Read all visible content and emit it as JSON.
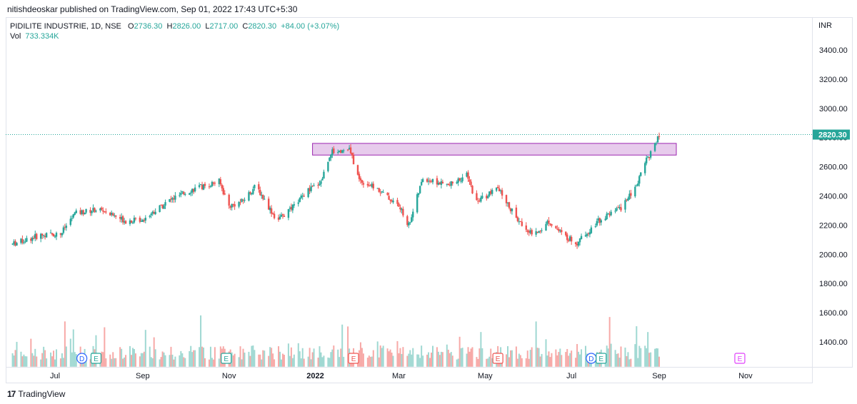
{
  "header": {
    "published": "nitishdeoskar published on TradingView.com, Sep 01, 2022 17:43 UTC+5:30"
  },
  "legend": {
    "symbol": "PIDILITE INDUSTRIE, 1D, NSE",
    "o_label": "O",
    "o_value": "2736.30",
    "h_label": "H",
    "h_value": "2826.00",
    "l_label": "L",
    "l_value": "2717.00",
    "c_label": "C",
    "c_value": "2820.30",
    "change": "+84.00 (+3.07%)",
    "vol_label": "Vol",
    "vol_value": "733.334K"
  },
  "currency": "INR",
  "footer": {
    "brand": "TradingView",
    "logo": "17"
  },
  "colors": {
    "up": "#26a69a",
    "down": "#ef5350",
    "zone_fill": "#e1bee7",
    "zone_stroke": "#9c27b0",
    "vol_up": "#9fd8d2",
    "vol_down": "#f7a9a7",
    "last_price_bg": "#26a69a"
  },
  "chart_data": {
    "type": "candlestick",
    "title": "PIDILITE INDUSTRIE, 1D, NSE",
    "y_ticks": [
      "3400.00",
      "3200.00",
      "3000.00",
      "2800.00",
      "2600.00",
      "2400.00",
      "2200.00",
      "2000.00",
      "1800.00",
      "1600.00",
      "1400.00"
    ],
    "y_tick_values": [
      3400,
      3200,
      3000,
      2800,
      2600,
      2400,
      2200,
      2000,
      1800,
      1600,
      1400
    ],
    "ylim": [
      1230,
      3500
    ],
    "x_ticks": [
      "Jul",
      "Sep",
      "Nov",
      "2022",
      "Mar",
      "May",
      "Jul",
      "Sep",
      "Nov"
    ],
    "x_tick_bold": [
      false,
      false,
      false,
      true,
      false,
      false,
      false,
      false,
      false
    ],
    "last_price": "2820.30",
    "last_price_value": 2820.3,
    "resistance_zone": {
      "from": "2021-12-30",
      "to": "2022-10-01",
      "low": 2680,
      "high": 2760
    },
    "price_path": [
      [
        "2021-06-01",
        2070
      ],
      [
        "2021-06-20",
        2130
      ],
      [
        "2021-07-05",
        2140
      ],
      [
        "2021-07-15",
        2280
      ],
      [
        "2021-08-01",
        2310
      ],
      [
        "2021-08-20",
        2230
      ],
      [
        "2021-09-01",
        2240
      ],
      [
        "2021-09-20",
        2370
      ],
      [
        "2021-10-05",
        2440
      ],
      [
        "2021-10-25",
        2500
      ],
      [
        "2021-11-01",
        2330
      ],
      [
        "2021-11-10",
        2360
      ],
      [
        "2021-11-20",
        2470
      ],
      [
        "2021-12-05",
        2230
      ],
      [
        "2021-12-15",
        2310
      ],
      [
        "2021-12-25",
        2420
      ],
      [
        "2022-01-05",
        2500
      ],
      [
        "2022-01-12",
        2700
      ],
      [
        "2022-01-25",
        2720
      ],
      [
        "2022-02-01",
        2510
      ],
      [
        "2022-02-15",
        2440
      ],
      [
        "2022-03-01",
        2330
      ],
      [
        "2022-03-08",
        2200
      ],
      [
        "2022-03-18",
        2520
      ],
      [
        "2022-04-05",
        2470
      ],
      [
        "2022-04-18",
        2540
      ],
      [
        "2022-04-25",
        2360
      ],
      [
        "2022-05-10",
        2450
      ],
      [
        "2022-05-25",
        2220
      ],
      [
        "2022-06-05",
        2130
      ],
      [
        "2022-06-15",
        2230
      ],
      [
        "2022-06-25",
        2130
      ],
      [
        "2022-07-05",
        2080
      ],
      [
        "2022-07-20",
        2230
      ],
      [
        "2022-08-05",
        2320
      ],
      [
        "2022-08-15",
        2450
      ],
      [
        "2022-08-22",
        2640
      ],
      [
        "2022-08-28",
        2720
      ],
      [
        "2022-09-01",
        2820
      ]
    ],
    "volume_ylim": [
      0,
      1.0
    ],
    "events": [
      {
        "date": "2021-07-20",
        "label": "D",
        "color": "#2962ff",
        "shape": "circle"
      },
      {
        "date": "2021-07-30",
        "label": "E",
        "color": "#26a69a",
        "shape": "square"
      },
      {
        "date": "2021-10-30",
        "label": "E",
        "color": "#26a69a",
        "shape": "square"
      },
      {
        "date": "2022-01-28",
        "label": "E",
        "color": "#ef5350",
        "shape": "square"
      },
      {
        "date": "2022-05-10",
        "label": "E",
        "color": "#ef5350",
        "shape": "square"
      },
      {
        "date": "2022-07-15",
        "label": "D",
        "color": "#2962ff",
        "shape": "circle"
      },
      {
        "date": "2022-07-22",
        "label": "E",
        "color": "#26a69a",
        "shape": "square"
      },
      {
        "date": "2022-10-28",
        "label": "E",
        "color": "#e040fb",
        "shape": "square"
      }
    ]
  }
}
